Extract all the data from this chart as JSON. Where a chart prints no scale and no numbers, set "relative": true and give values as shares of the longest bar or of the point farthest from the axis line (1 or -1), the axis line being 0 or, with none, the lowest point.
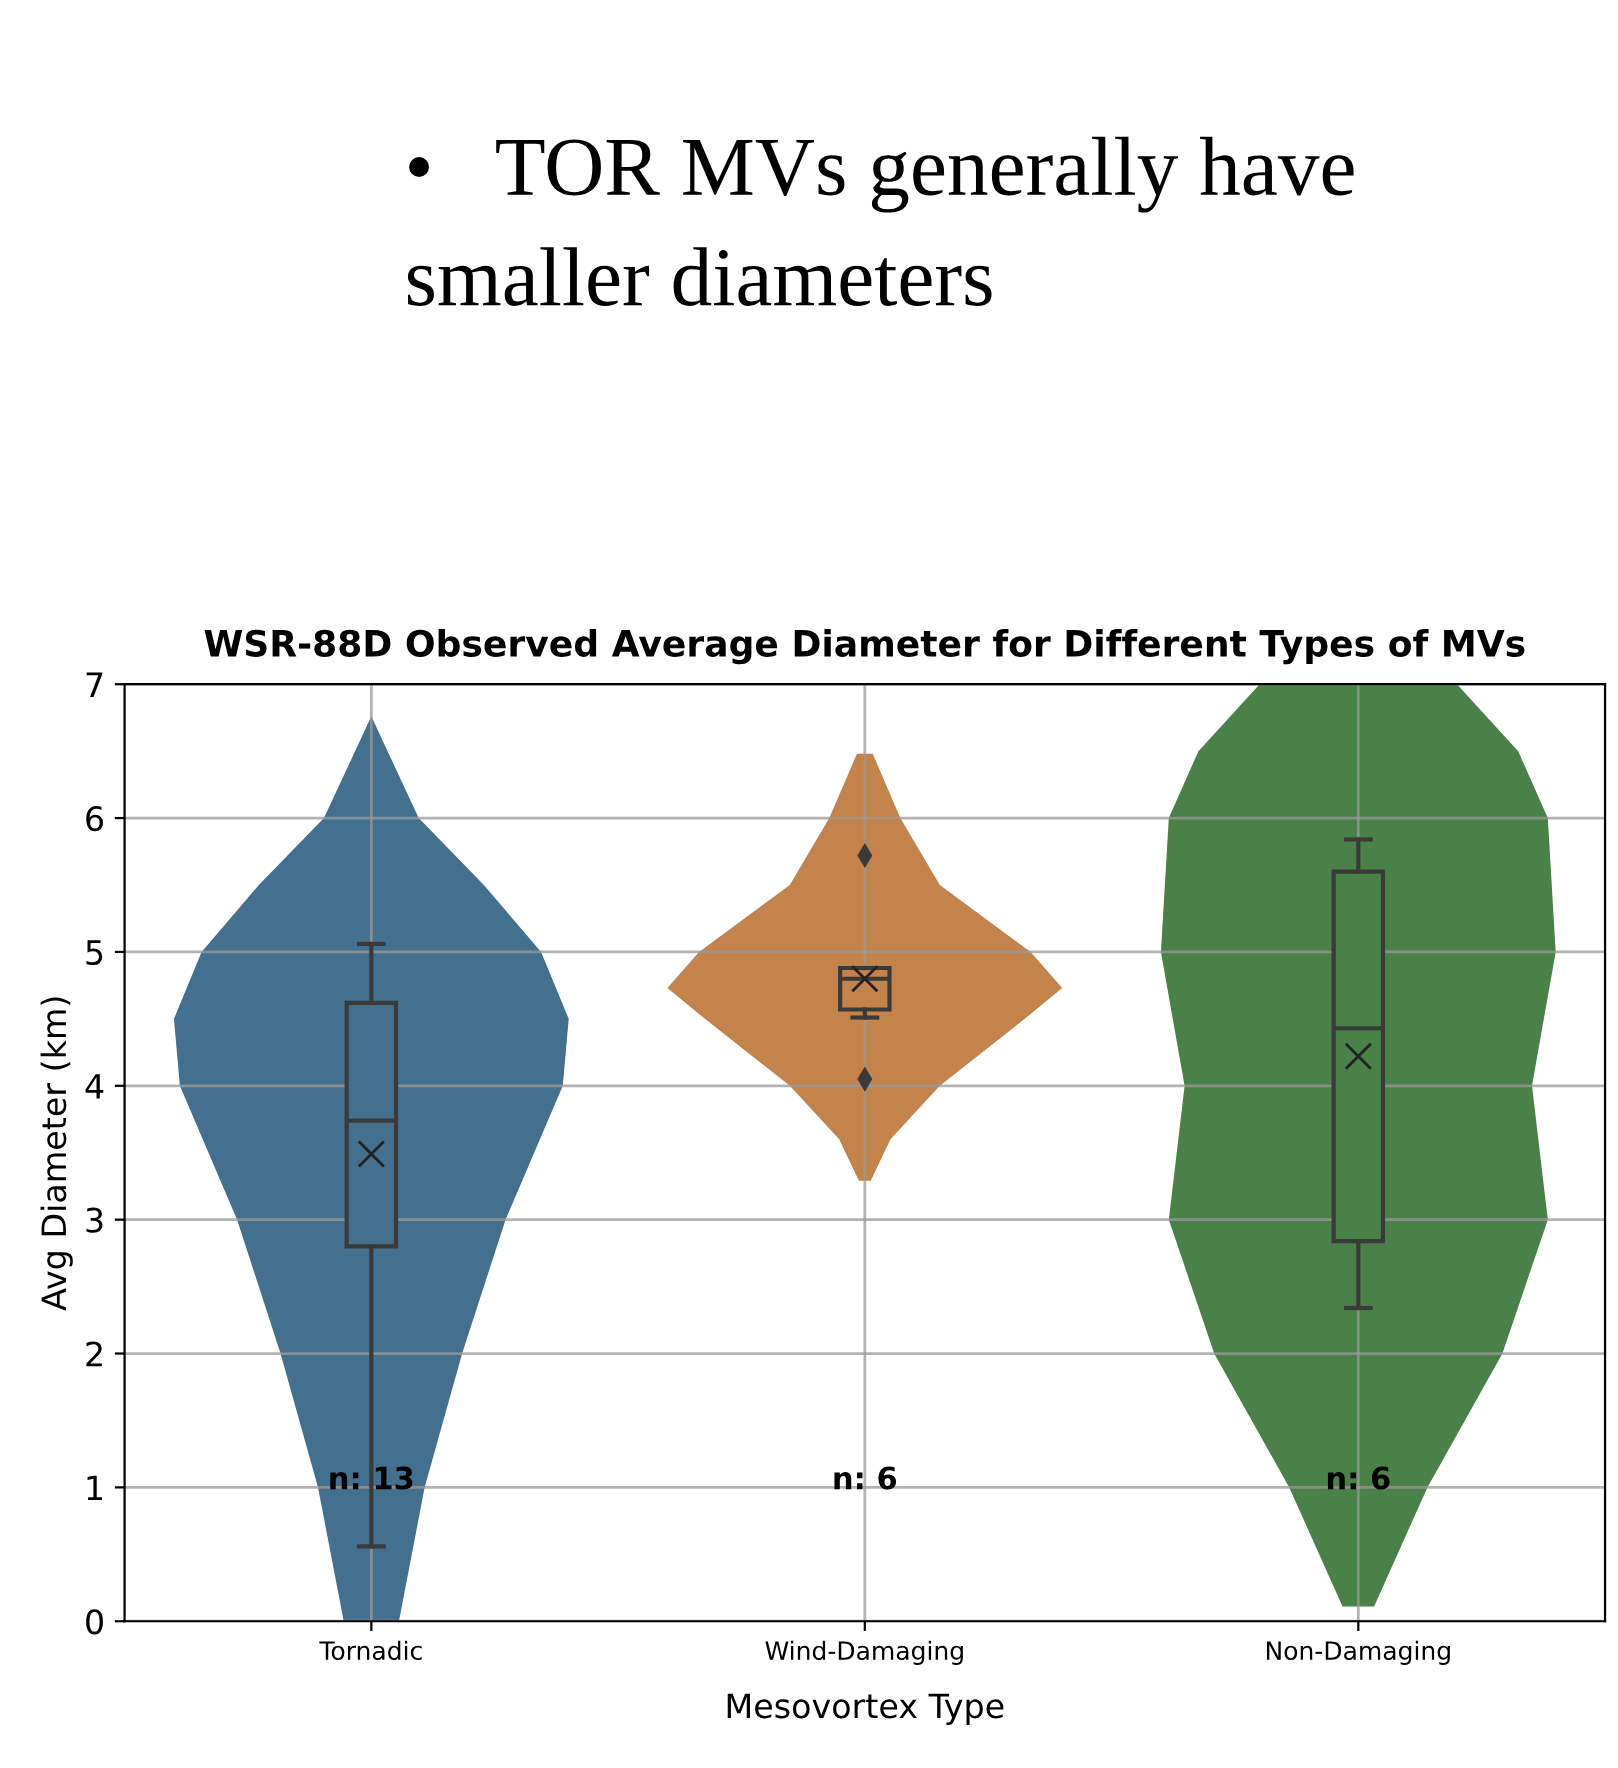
{
  "chart_data": [
    {
      "type": "box",
      "title": "WSR-88D Observed Average Diameter for Different Types of MVs",
      "xlabel": "Mesovortex Type",
      "ylabel": "Avg Diameter (km)",
      "categories": [
        "Tornadic",
        "Wind-Damaging",
        "Non-Damaging"
      ],
      "colors": [
        "#44708f",
        "#c4834b",
        "#4a8149"
      ],
      "boxes": [
        {
          "low": 0.56,
          "q1": 2.8,
          "median": 3.74,
          "q3": 4.62,
          "high": 5.06,
          "mean": 3.49
        },
        {
          "low": 4.51,
          "q1": 4.57,
          "median": 4.8,
          "q3": 4.88,
          "high": 4.88,
          "mean": 4.8,
          "outliers": [
            5.72,
            4.05
          ]
        },
        {
          "low": 2.34,
          "q1": 2.84,
          "median": 4.43,
          "q3": 5.6,
          "high": 5.84,
          "mean": 4.22
        }
      ],
      "ylim": [
        0,
        7
      ],
      "yticks": [
        0,
        1,
        2,
        3,
        4,
        5,
        6,
        7
      ],
      "grid": true,
      "annotations": [
        "•   TOR MVs generally have smaller diameters",
        "n: 13",
        "n: 6",
        "n: 6"
      ]
    },
    {
      "type": "area",
      "orientation": "horizontal",
      "relative": true,
      "ylim": [
        0,
        7
      ],
      "tick_labels": false,
      "series": [
        {
          "color": "#44708f",
          "x": [
            0,
            1,
            2,
            3,
            4,
            4.5,
            5,
            5.5,
            6,
            6.76
          ],
          "values": [
            0.14,
            0.27,
            0.46,
            0.68,
            0.97,
            1,
            0.86,
            0.57,
            0.24,
            0
          ]
        }
      ]
    },
    {
      "type": "area",
      "orientation": "horizontal",
      "relative": true,
      "ylim": [
        0,
        7
      ],
      "tick_labels": false,
      "series": [
        {
          "color": "#c4834b",
          "x": [
            3.29,
            3.6,
            4,
            4.5,
            4.73,
            5,
            5.5,
            6,
            6.48
          ],
          "values": [
            0.03,
            0.13,
            0.38,
            0.81,
            1,
            0.84,
            0.38,
            0.18,
            0.04
          ]
        }
      ]
    },
    {
      "type": "area",
      "orientation": "horizontal",
      "relative": true,
      "ylim": [
        0,
        7
      ],
      "tick_labels": false,
      "series": [
        {
          "color": "#4a8149",
          "x": [
            0.11,
            1,
            2,
            3,
            4,
            5,
            6,
            6.5,
            7
          ],
          "values": [
            0.08,
            0.35,
            0.73,
            0.96,
            0.88,
            1,
            0.96,
            0.81,
            0.5
          ]
        }
      ]
    }
  ]
}
